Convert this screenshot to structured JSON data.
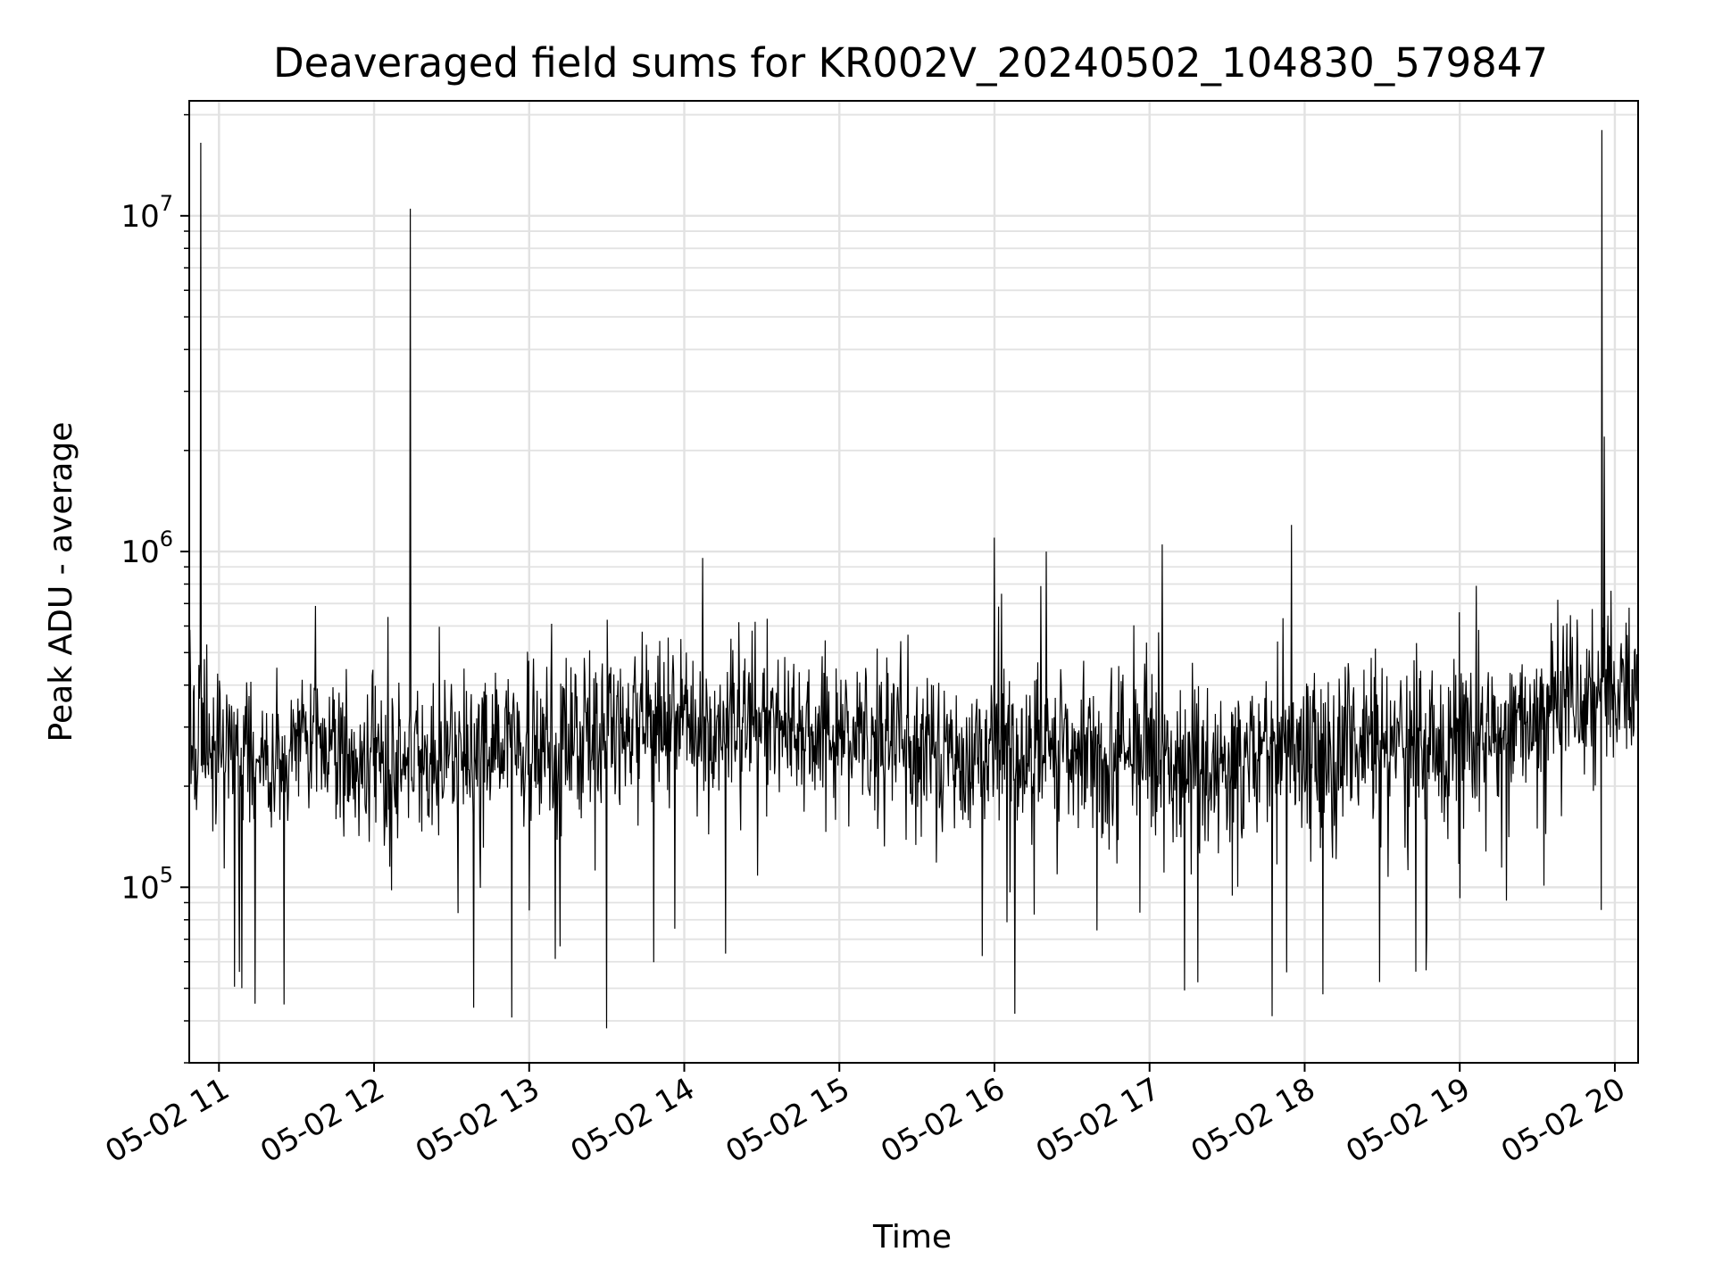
{
  "chart_data": {
    "type": "line",
    "title": "Deaveraged field sums for KR002V_20240502_104830_579847",
    "xlabel": "Time",
    "ylabel": "Peak ADU - average",
    "x_axis": {
      "type": "time",
      "min": "2024-05-02T10:48:30",
      "max": "2024-05-02T20:09:00",
      "tick_labels": [
        "05-02 11",
        "05-02 12",
        "05-02 13",
        "05-02 14",
        "05-02 15",
        "05-02 16",
        "05-02 17",
        "05-02 18",
        "05-02 19",
        "05-02 20"
      ]
    },
    "y_axis": {
      "scale": "log",
      "range": [
        30000,
        22000000
      ],
      "tick_labels": [
        {
          "base": "10",
          "exponent": "5",
          "value": 100000
        },
        {
          "base": "10",
          "exponent": "6",
          "value": 1000000
        },
        {
          "base": "10",
          "exponent": "7",
          "value": 10000000
        }
      ]
    },
    "grid": true,
    "line_color": "#000000",
    "baseline": {
      "typical_level": 280000,
      "typical_low": 150000,
      "typical_high": 500000,
      "dip_minimum": 38000
    },
    "series": [
      {
        "values_note": "",
        "peaks": [
          {
            "x": "2024-05-02T10:53:00",
            "y": 16500000
          },
          {
            "x": "2024-05-02T12:14:00",
            "y": 10500000
          },
          {
            "x": "2024-05-02T16:00:00",
            "y": 1100000
          },
          {
            "x": "2024-05-02T16:20:00",
            "y": 1000000
          },
          {
            "x": "2024-05-02T17:05:00",
            "y": 1050000
          },
          {
            "x": "2024-05-02T17:55:00",
            "y": 1200000
          },
          {
            "x": "2024-05-02T19:55:00",
            "y": 18000000
          },
          {
            "x": "2024-05-02T19:56:00",
            "y": 2200000
          }
        ],
        "dips": [
          {
            "x": "2024-05-02T11:14:00",
            "y": 45000
          },
          {
            "x": "2024-05-02T13:30:00",
            "y": 38000
          },
          {
            "x": "2024-05-02T16:08:00",
            "y": 42000
          },
          {
            "x": "2024-05-02T18:07:00",
            "y": 48000
          }
        ]
      }
    ]
  }
}
